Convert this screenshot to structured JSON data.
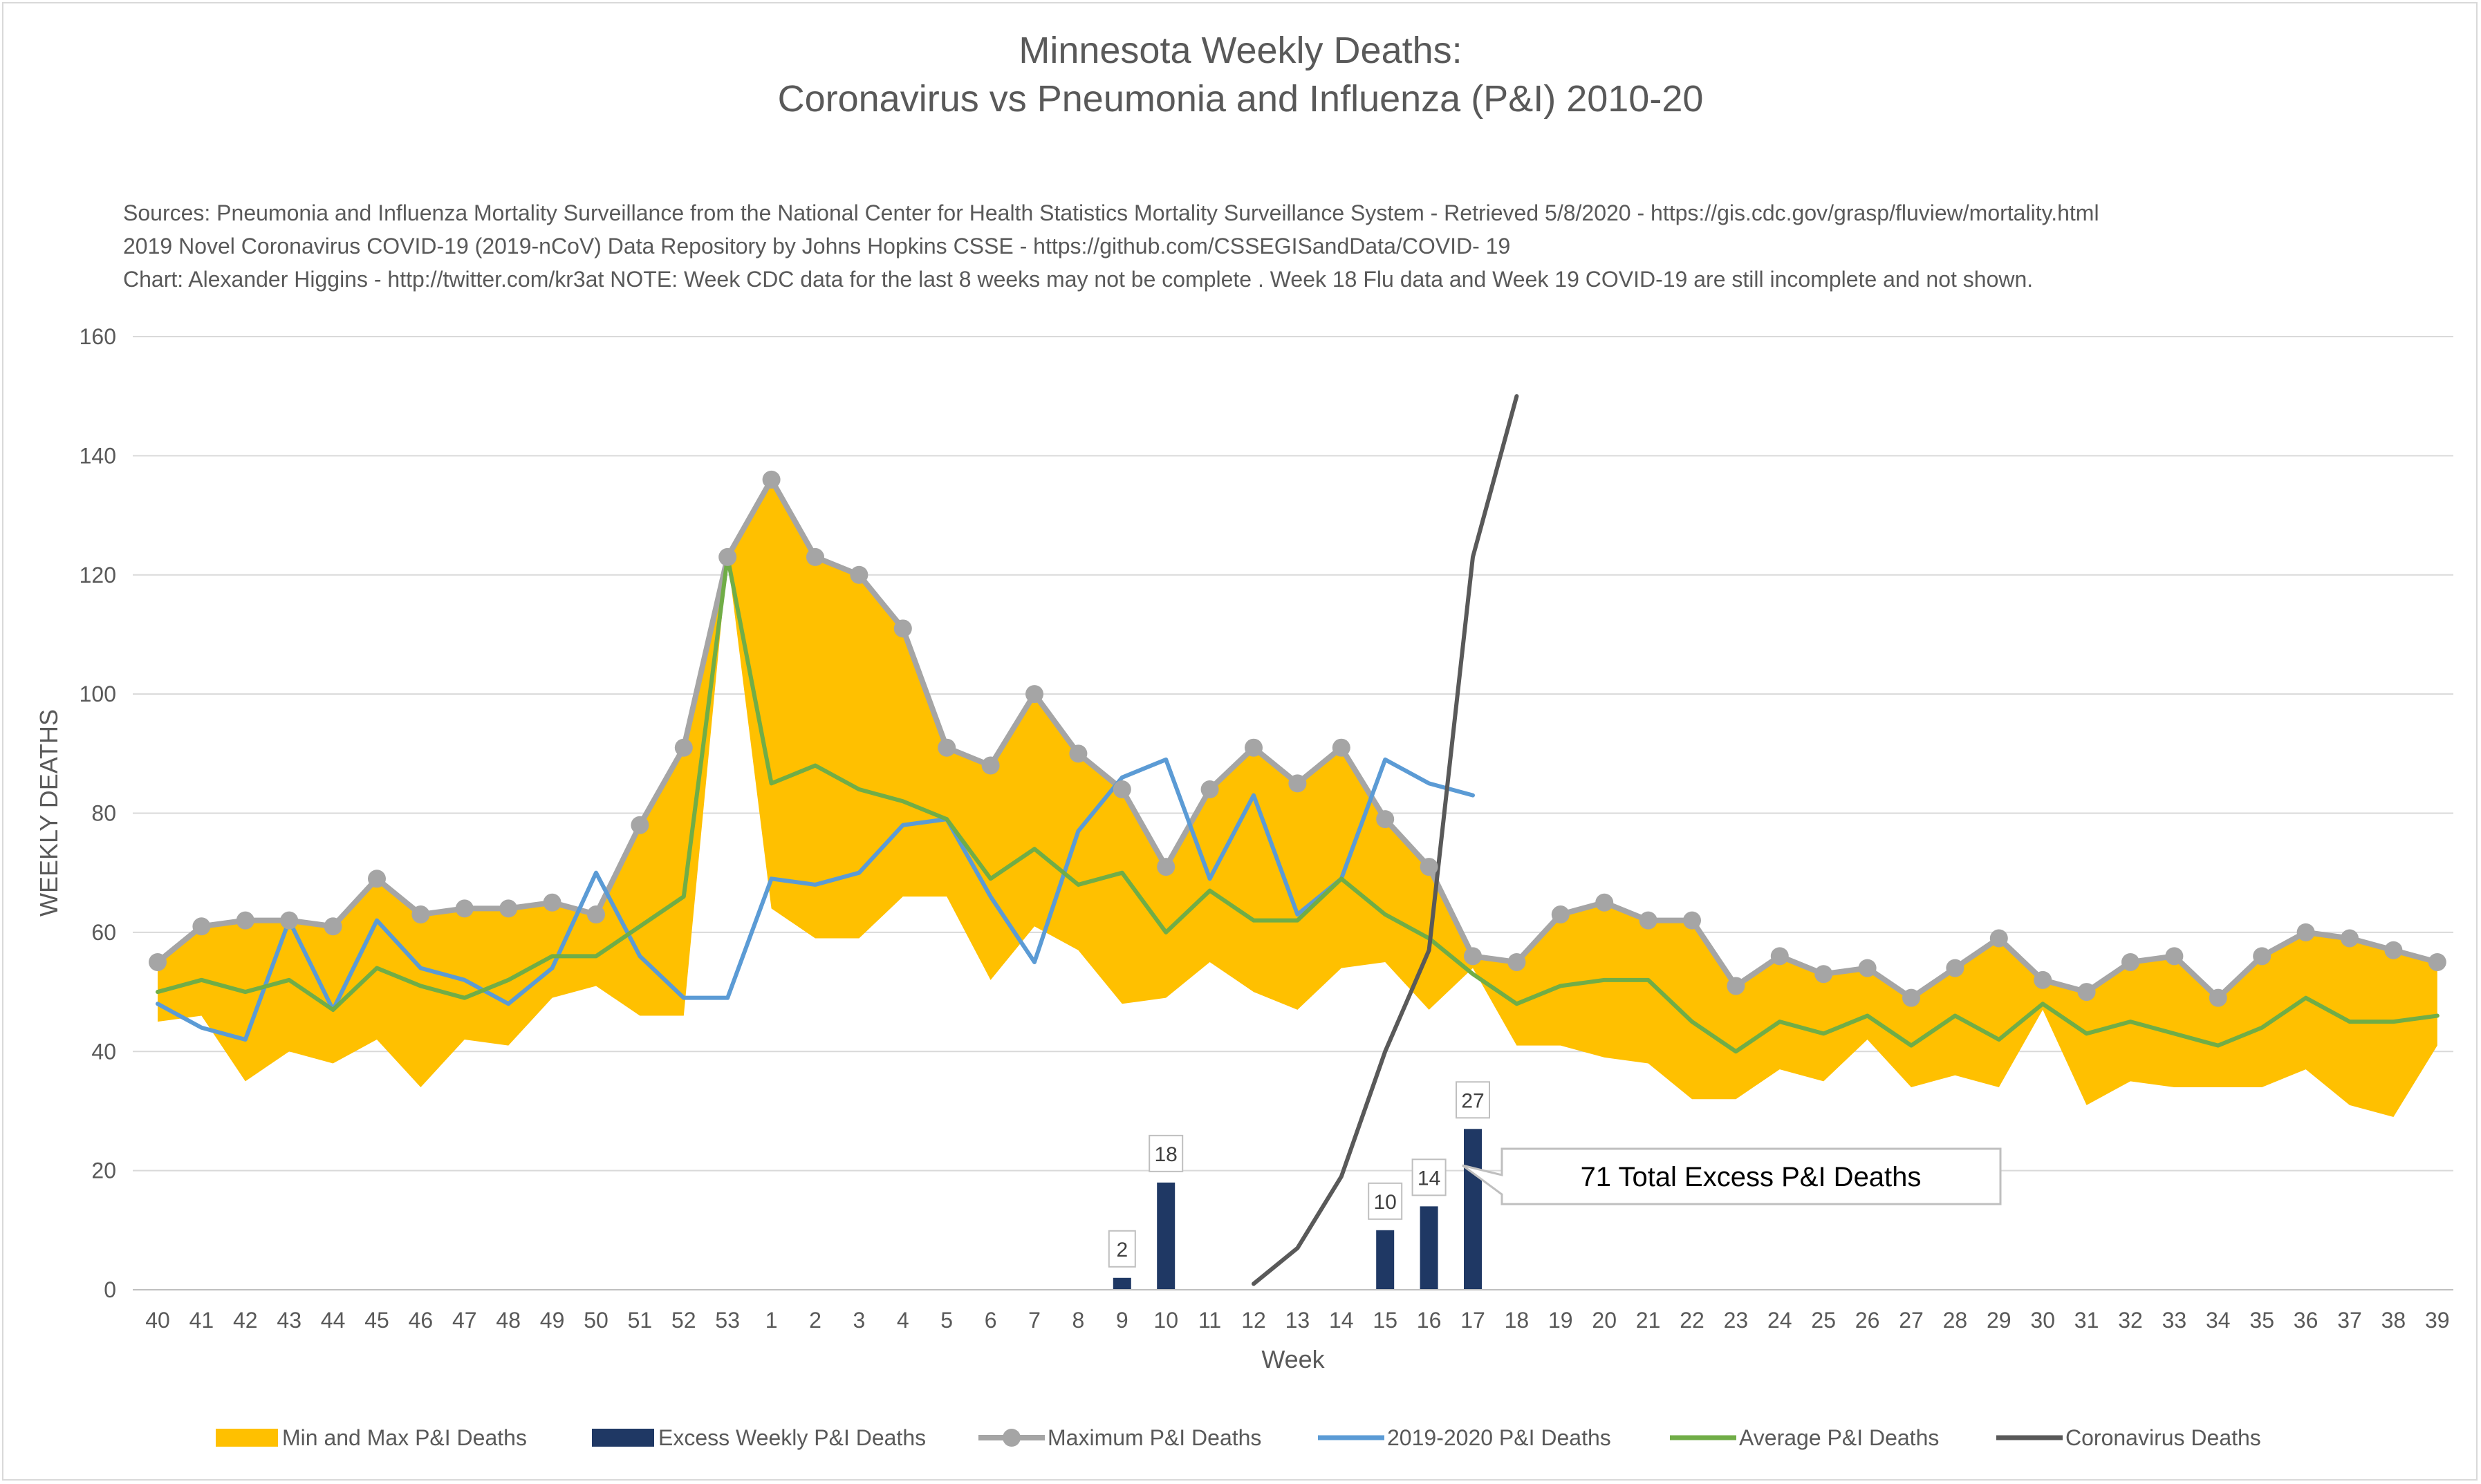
{
  "header": {
    "title_line1": "Minnesota Weekly Deaths:",
    "title_line2": "Coronavirus vs Pneumonia and Influenza (P&I) 2010-20",
    "source_line1": "Sources: Pneumonia and Influenza Mortality Surveillance from the National Center for Health Statistics Mortality Surveillance System - Retrieved 5/8/2020 - https://gis.cdc.gov/grasp/fluview/mortality.html",
    "source_line2": "2019 Novel Coronavirus COVID-19 (2019-nCoV) Data Repository by Johns Hopkins CSSE - https://github.com/CSSEGISandData/COVID- 19",
    "source_line3": "Chart: Alexander Higgins - http://twitter.com/kr3at   NOTE: Week CDC data for the last 8 weeks may not be complete . Week 18 Flu data and Week 19 COVID-19 are still incomplete and not shown."
  },
  "callout": {
    "text": "71 Total Excess P&I Deaths"
  },
  "colors": {
    "range": "#ffc000",
    "excess": "#1f3864",
    "maximum": "#a5a5a5",
    "current": "#5b9bd5",
    "average": "#70ad47",
    "coronavirus": "#595959",
    "grid": "#d9d9d9"
  },
  "chart_data": {
    "type": "line",
    "xlabel": "Week",
    "ylabel": "WEEKLY DEATHS",
    "ylim": [
      0,
      160
    ],
    "yticks": [
      0,
      20,
      40,
      60,
      80,
      100,
      120,
      140,
      160
    ],
    "grid": true,
    "legend_position": "bottom",
    "categories": [
      "40",
      "41",
      "42",
      "43",
      "44",
      "45",
      "46",
      "47",
      "48",
      "49",
      "50",
      "51",
      "52",
      "53",
      "1",
      "2",
      "3",
      "4",
      "5",
      "6",
      "7",
      "8",
      "9",
      "10",
      "11",
      "12",
      "13",
      "14",
      "15",
      "16",
      "17",
      "18",
      "19",
      "20",
      "21",
      "22",
      "23",
      "24",
      "25",
      "26",
      "27",
      "28",
      "29",
      "30",
      "31",
      "32",
      "33",
      "34",
      "35",
      "36",
      "37",
      "38",
      "39"
    ],
    "range_area": {
      "name": "Min and Max P&I Deaths",
      "min": [
        45,
        46,
        35,
        40,
        38,
        42,
        34,
        42,
        41,
        49,
        51,
        46,
        46,
        123,
        64,
        59,
        59,
        66,
        66,
        52,
        61,
        57,
        48,
        49,
        55,
        50,
        47,
        54,
        55,
        47,
        54,
        41,
        41,
        39,
        38,
        32,
        32,
        37,
        35,
        42,
        34,
        36,
        34,
        47,
        31,
        35,
        34,
        34,
        34,
        37,
        31,
        29,
        41
      ],
      "max": [
        55,
        61,
        62,
        62,
        61,
        69,
        63,
        64,
        64,
        65,
        63,
        78,
        91,
        123,
        136,
        123,
        120,
        111,
        91,
        88,
        100,
        90,
        84,
        71,
        84,
        91,
        85,
        91,
        79,
        71,
        56,
        55,
        63,
        65,
        62,
        62,
        51,
        56,
        53,
        54,
        49,
        54,
        59,
        52,
        50,
        55,
        56,
        49,
        56,
        60,
        59,
        57,
        55
      ]
    },
    "series": [
      {
        "name": "Maximum P&I Deaths",
        "values": [
          55,
          61,
          62,
          62,
          61,
          69,
          63,
          64,
          64,
          65,
          63,
          78,
          91,
          123,
          136,
          123,
          120,
          111,
          91,
          88,
          100,
          90,
          84,
          71,
          84,
          91,
          85,
          91,
          79,
          71,
          56,
          55,
          63,
          65,
          62,
          62,
          51,
          56,
          53,
          54,
          49,
          54,
          59,
          52,
          50,
          55,
          56,
          49,
          56,
          60,
          59,
          57,
          55
        ]
      },
      {
        "name": "2019-2020 P&I Deaths",
        "values": [
          48,
          44,
          42,
          62,
          47,
          62,
          54,
          52,
          48,
          54,
          70,
          56,
          49,
          49,
          69,
          68,
          70,
          78,
          79,
          66,
          55,
          77,
          86,
          89,
          69,
          83,
          63,
          69,
          89,
          85,
          83,
          null,
          null,
          null,
          null,
          null,
          null,
          null,
          null,
          null,
          null,
          null,
          null,
          null,
          null,
          null,
          null,
          null,
          null,
          null,
          null,
          null,
          null
        ]
      },
      {
        "name": "Average P&I Deaths",
        "values": [
          50,
          52,
          50,
          52,
          47,
          54,
          51,
          49,
          52,
          56,
          56,
          61,
          66,
          123,
          85,
          88,
          84,
          82,
          79,
          69,
          74,
          68,
          70,
          60,
          67,
          62,
          62,
          69,
          63,
          59,
          53,
          48,
          51,
          52,
          52,
          45,
          40,
          45,
          43,
          46,
          41,
          46,
          42,
          48,
          43,
          45,
          43,
          41,
          44,
          49,
          45,
          45,
          46
        ]
      },
      {
        "name": "Coronavirus Deaths",
        "values": [
          null,
          null,
          null,
          null,
          null,
          null,
          null,
          null,
          null,
          null,
          null,
          null,
          null,
          null,
          null,
          null,
          null,
          null,
          null,
          null,
          null,
          null,
          null,
          null,
          null,
          1,
          7,
          19,
          40,
          57,
          123,
          150,
          null,
          null,
          null,
          null,
          null,
          null,
          null,
          null,
          null,
          null,
          null,
          null,
          null,
          null,
          null,
          null,
          null,
          null,
          null,
          null,
          null
        ]
      }
    ],
    "bars": {
      "name": "Excess Weekly P&I Deaths",
      "points": [
        {
          "week": "9",
          "value": 2
        },
        {
          "week": "10",
          "value": 18
        },
        {
          "week": "15",
          "value": 10
        },
        {
          "week": "16",
          "value": 14
        },
        {
          "week": "17",
          "value": 27
        }
      ]
    },
    "legend": [
      {
        "label": "Min and Max P&I Deaths",
        "kind": "area",
        "color_key": "range"
      },
      {
        "label": "Excess Weekly P&I Deaths",
        "kind": "bar",
        "color_key": "excess"
      },
      {
        "label": "Maximum P&I Deaths",
        "kind": "line-marker",
        "color_key": "maximum"
      },
      {
        "label": "2019-2020 P&I Deaths",
        "kind": "line",
        "color_key": "current"
      },
      {
        "label": "Average P&I Deaths",
        "kind": "line",
        "color_key": "average"
      },
      {
        "label": "Coronavirus Deaths",
        "kind": "line",
        "color_key": "coronavirus"
      }
    ]
  }
}
